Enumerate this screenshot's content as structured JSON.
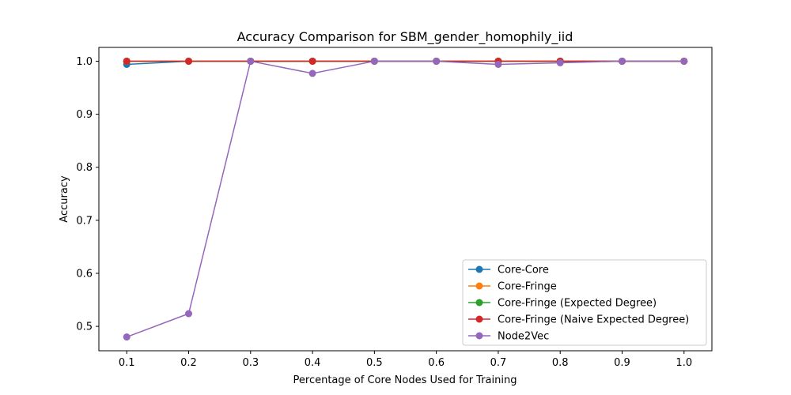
{
  "chart_data": {
    "type": "line",
    "title": "Accuracy Comparison for SBM_gender_homophily_iid",
    "xlabel": "Percentage of Core Nodes Used for Training",
    "ylabel": "Accuracy",
    "x": [
      0.1,
      0.2,
      0.3,
      0.4,
      0.5,
      0.6,
      0.7,
      0.8,
      0.9,
      1.0
    ],
    "xticks": [
      "0.1",
      "0.2",
      "0.3",
      "0.4",
      "0.5",
      "0.6",
      "0.7",
      "0.8",
      "0.9",
      "1.0"
    ],
    "yticks": [
      "0.5",
      "0.6",
      "0.7",
      "0.8",
      "0.9",
      "1.0"
    ],
    "xlim": [
      0.055,
      1.045
    ],
    "ylim": [
      0.454,
      1.026
    ],
    "legend_position": "lower-right",
    "grid": false,
    "series": [
      {
        "name": "Core-Core",
        "color": "#1f77b4",
        "values": [
          0.994,
          1.0,
          1.0,
          1.0,
          1.0,
          1.0,
          1.0,
          1.0,
          1.0,
          1.0
        ]
      },
      {
        "name": "Core-Fringe",
        "color": "#ff7f0e",
        "values": [
          1.0,
          1.0,
          1.0,
          1.0,
          1.0,
          1.0,
          1.0,
          1.0,
          1.0,
          1.0
        ]
      },
      {
        "name": "Core-Fringe (Expected Degree)",
        "color": "#2ca02c",
        "values": [
          1.0,
          1.0,
          1.0,
          1.0,
          1.0,
          1.0,
          1.0,
          1.0,
          1.0,
          1.0
        ]
      },
      {
        "name": "Core-Fringe (Naive Expected Degree)",
        "color": "#d62728",
        "values": [
          1.0,
          1.0,
          1.0,
          1.0,
          1.0,
          1.0,
          1.0,
          1.0,
          1.0,
          1.0
        ]
      },
      {
        "name": "Node2Vec",
        "color": "#9467bd",
        "values": [
          0.48,
          0.524,
          1.0,
          0.977,
          1.0,
          1.0,
          0.994,
          0.997,
          1.0,
          1.0
        ]
      }
    ]
  }
}
